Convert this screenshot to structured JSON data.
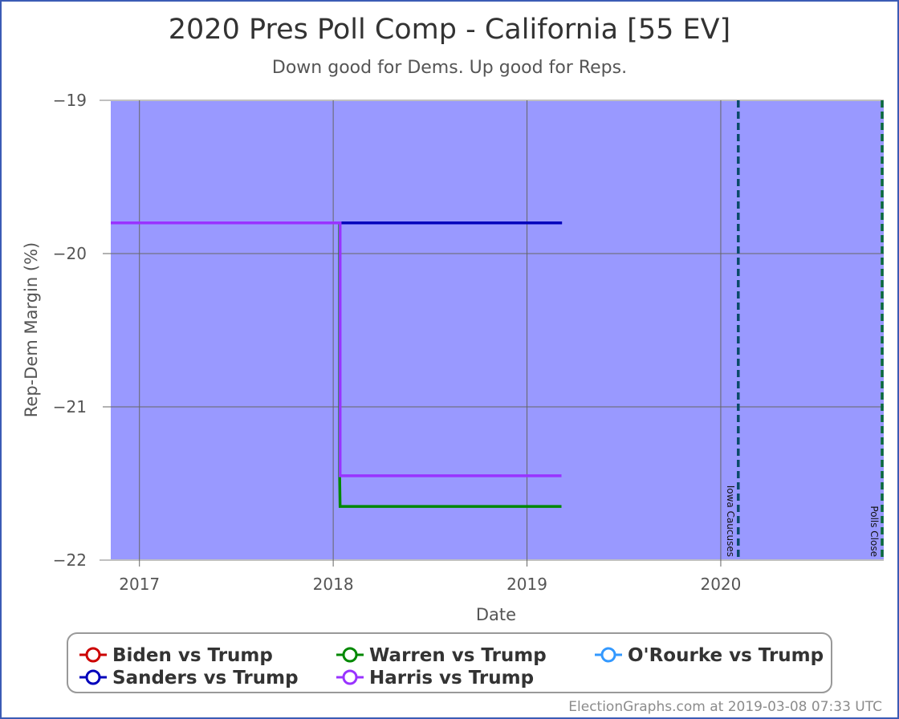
{
  "chart_data": {
    "type": "line",
    "title": "2020 Pres Poll Comp - California [55 EV]",
    "subtitle": "Down good for Dems. Up good for Reps.",
    "xlabel": "Date",
    "ylabel": "Rep-Dem Margin (%)",
    "xlim": [
      "2016-11-08",
      "2020-11-03"
    ],
    "ylim": [
      -22,
      -19
    ],
    "x_ticks": [
      {
        "date": "2017-01-01",
        "label": "2017"
      },
      {
        "date": "2018-01-01",
        "label": "2018"
      },
      {
        "date": "2019-01-01",
        "label": "2019"
      },
      {
        "date": "2020-01-01",
        "label": "2020"
      }
    ],
    "y_ticks": [
      -19,
      -20,
      -21,
      -22
    ],
    "grid": true,
    "plot_background": "#9999ff",
    "series": [
      {
        "name": "Biden vs Trump",
        "color": "#cc0000",
        "points": []
      },
      {
        "name": "Warren vs Trump",
        "color": "#008800",
        "points": [
          {
            "x": "2016-11-08",
            "y": -19.8
          },
          {
            "x": "2018-01-13",
            "y": -19.8
          },
          {
            "x": "2018-01-13",
            "y": -21.45
          },
          {
            "x": "2018-01-14",
            "y": -21.65
          },
          {
            "x": "2019-03-07",
            "y": -21.65
          }
        ]
      },
      {
        "name": "O'Rourke vs Trump",
        "color": "#3399ff",
        "points": []
      },
      {
        "name": "Sanders vs Trump",
        "color": "#0000bb",
        "points": [
          {
            "x": "2016-11-08",
            "y": -19.8
          },
          {
            "x": "2019-03-08",
            "y": -19.8
          }
        ]
      },
      {
        "name": "Harris vs Trump",
        "color": "#9933ff",
        "points": [
          {
            "x": "2016-11-08",
            "y": -19.8
          },
          {
            "x": "2018-01-14",
            "y": -19.8
          },
          {
            "x": "2018-01-14",
            "y": -21.45
          },
          {
            "x": "2019-03-07",
            "y": -21.45
          }
        ]
      }
    ],
    "markers": [
      {
        "label": "Iowa Caucuses",
        "date": "2020-02-03",
        "color": "#0a4a6a"
      },
      {
        "label": "Polls Close",
        "date": "2020-11-03",
        "color": "#0a6a3a"
      }
    ],
    "legend_placement": "bottom",
    "credit": "ElectionGraphs.com at 2019-03-08 07:33 UTC"
  }
}
